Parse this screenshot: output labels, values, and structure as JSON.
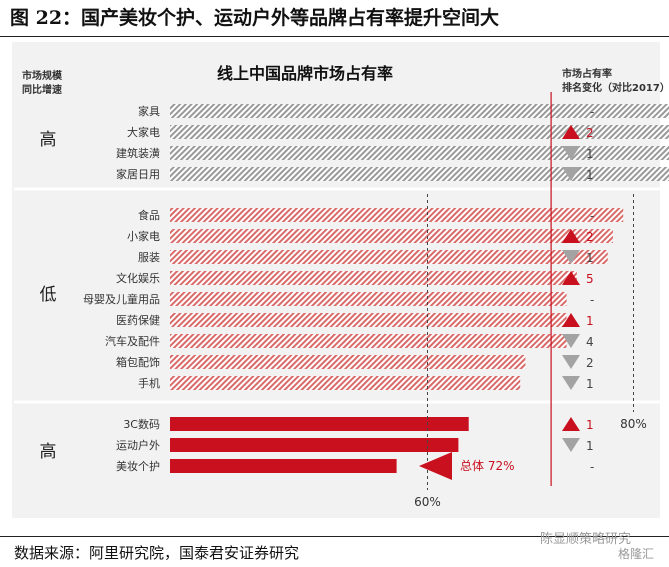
{
  "figure_title": "图 22：国产美妆个护、运动户外等品牌占有率提升空间大",
  "source_note": "数据来源：阿里研究院，国泰君安证券研究",
  "watermark": {
    "text": "陈显顺策略研究",
    "logo": "格隆汇"
  },
  "colors": {
    "gray_bar": "#999999",
    "pink_bar": "#d96a6a",
    "red_bar": "#c8101e",
    "up_arrow": "#c8101e",
    "down_arrow": "#a3a3a3",
    "panel": "#f2f2f2",
    "total_line": "#c8101e",
    "ref_line": "#444444"
  },
  "chart_data": {
    "type": "bar",
    "orientation": "horizontal",
    "title": "线上中国品牌市场占有率",
    "left_header": "市场规模\n同比增速",
    "right_header": "市场占有率\n排名变化（对比2017）",
    "groups": [
      {
        "label": "高",
        "style": "gray",
        "categories": [
          "家具",
          "大家电",
          "建筑装潢",
          "家居日用"
        ],
        "values": [
          88,
          87,
          85,
          84
        ],
        "rank_change": [
          {
            "direction": "none",
            "text": "-"
          },
          {
            "direction": "up",
            "text": "2"
          },
          {
            "direction": "down",
            "text": "1"
          },
          {
            "direction": "down",
            "text": "1"
          }
        ]
      },
      {
        "label": "低",
        "style": "pink",
        "categories": [
          "食品",
          "小家电",
          "服装",
          "文化娱乐",
          "母婴及儿童用品",
          "医药保健",
          "汽车及配件",
          "箱包配饰",
          "手机"
        ],
        "values": [
          79,
          78,
          77.5,
          74.5,
          73.5,
          73.5,
          73.5,
          69.5,
          69
        ],
        "rank_change": [
          {
            "direction": "none",
            "text": "-"
          },
          {
            "direction": "up",
            "text": "2"
          },
          {
            "direction": "down",
            "text": "1"
          },
          {
            "direction": "up",
            "text": "5"
          },
          {
            "direction": "none",
            "text": "-"
          },
          {
            "direction": "up",
            "text": "1"
          },
          {
            "direction": "down",
            "text": "4"
          },
          {
            "direction": "down",
            "text": "2"
          },
          {
            "direction": "down",
            "text": "1"
          }
        ]
      },
      {
        "label": "高",
        "style": "red",
        "categories": [
          "3C数码",
          "运动户外",
          "美妆个护"
        ],
        "values": [
          64,
          63,
          57
        ],
        "rank_change": [
          {
            "direction": "up",
            "text": "1"
          },
          {
            "direction": "down",
            "text": "1"
          },
          {
            "direction": "none",
            "text": "-"
          }
        ]
      }
    ],
    "reference_lines": [
      {
        "value": 60,
        "label": "60%"
      },
      {
        "value": 80,
        "label": "80%"
      }
    ],
    "total": {
      "value": 72,
      "label": "总体 72%"
    },
    "axis_range": [
      35,
      90
    ]
  }
}
